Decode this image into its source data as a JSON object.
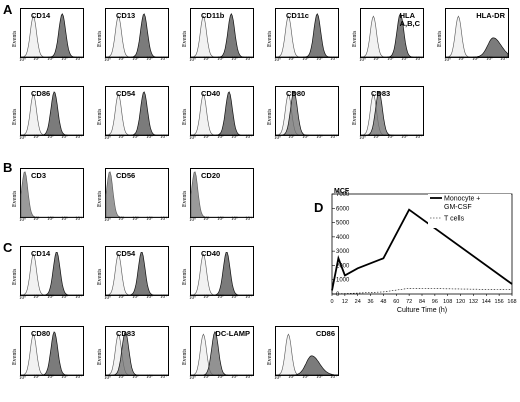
{
  "panels": {
    "a": "A",
    "b": "B",
    "c": "C",
    "d": "D"
  },
  "histogram_axis": {
    "ylabel": "Events",
    "xticks": [
      "10⁰",
      "10¹",
      "10²",
      "10³",
      "10⁴"
    ]
  },
  "histograms": [
    {
      "label": "CD14",
      "shift": 0.62,
      "style": "shaded"
    },
    {
      "label": "CD13",
      "shift": 0.55,
      "style": "shaded"
    },
    {
      "label": "CD11b",
      "shift": 0.6,
      "style": "shaded"
    },
    {
      "label": "CD11c",
      "shift": 0.62,
      "style": "shaded"
    },
    {
      "label": "HLA\nA,B,C",
      "shift": 0.58,
      "style": "shaded"
    },
    {
      "label": "HLA-DR",
      "shift": 0.75,
      "style": "broad"
    },
    {
      "label": "CD86",
      "shift": 0.45,
      "style": "shaded"
    },
    {
      "label": "CD54",
      "shift": 0.55,
      "style": "shaded"
    },
    {
      "label": "CD40",
      "shift": 0.55,
      "style": "shaded"
    },
    {
      "label": "CD80",
      "shift": 0.12,
      "style": "overlap"
    },
    {
      "label": "CD83",
      "shift": 0.12,
      "style": "overlap"
    },
    {
      "label": "CD3",
      "shift": 0.0,
      "style": "neg"
    },
    {
      "label": "CD56",
      "shift": 0.0,
      "style": "neg"
    },
    {
      "label": "CD20",
      "shift": 0.0,
      "style": "neg"
    },
    {
      "label": "CD14",
      "shift": 0.5,
      "style": "shaded"
    },
    {
      "label": "CD54",
      "shift": 0.5,
      "style": "shaded"
    },
    {
      "label": "CD40",
      "shift": 0.5,
      "style": "shaded"
    },
    {
      "label": "CD80",
      "shift": 0.45,
      "style": "shaded"
    },
    {
      "label": "CD83",
      "shift": 0.15,
      "style": "overlap"
    },
    {
      "label": "DC-LAMP",
      "shift": 0.25,
      "style": "overlap"
    },
    {
      "label": "CD86",
      "shift": 0.5,
      "style": "broad"
    }
  ],
  "chart_data": {
    "type": "line",
    "title": "",
    "ylabel": "MCF",
    "xlabel": "Culture Time (h)",
    "x": [
      0,
      6,
      12,
      24,
      36,
      48,
      72,
      96,
      120,
      144,
      168
    ],
    "xtick_labels": [
      "0",
      "12",
      "24",
      "36",
      "48",
      "60",
      "72",
      "84",
      "96",
      "108",
      "120",
      "132",
      "144",
      "156",
      "168"
    ],
    "yticks": [
      0,
      1000,
      2000,
      3000,
      4000,
      5000,
      6000,
      7000
    ],
    "xlim": [
      0,
      168
    ],
    "ylim": [
      0,
      7000
    ],
    "legend_position": "top-right",
    "series": [
      {
        "name": "Monocyte +\nGM-CSF",
        "style": "solid",
        "points": [
          [
            0,
            250
          ],
          [
            6,
            2500
          ],
          [
            12,
            1300
          ],
          [
            24,
            1800
          ],
          [
            48,
            2500
          ],
          [
            72,
            5900
          ],
          [
            168,
            700
          ]
        ]
      },
      {
        "name": "T cells",
        "style": "dotted",
        "points": [
          [
            0,
            0
          ],
          [
            12,
            30
          ],
          [
            24,
            60
          ],
          [
            48,
            150
          ],
          [
            72,
            400
          ],
          [
            120,
            350
          ],
          [
            168,
            300
          ]
        ]
      }
    ]
  }
}
